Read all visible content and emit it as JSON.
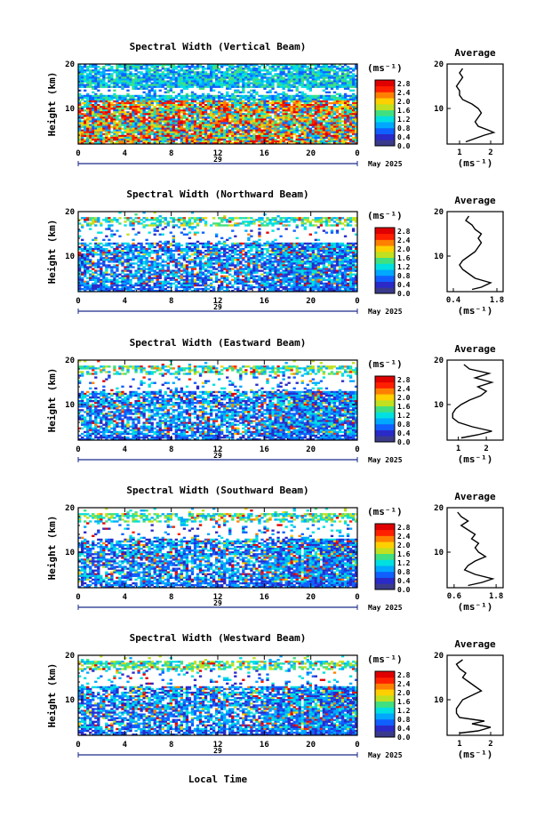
{
  "figure": {
    "date_label": "May 2025",
    "day_label": "29",
    "xlabel": "Local Time",
    "unit_label": "(ms⁻¹)",
    "avg_title": "Average",
    "avg_unit": "(ms⁻¹)"
  },
  "colorbar": {
    "ticks": [
      "2.8",
      "2.4",
      "2.0",
      "1.6",
      "1.2",
      "0.8",
      "0.4",
      "0.0"
    ],
    "colors": [
      "#3a3a8a",
      "#2a2ac8",
      "#1060ff",
      "#00a8ff",
      "#00e0e0",
      "#40e080",
      "#c0e020",
      "#ffd000",
      "#ff8000",
      "#ff2000",
      "#e00000"
    ]
  },
  "chart_data": [
    {
      "type": "heatmap",
      "title": "Spectral Width (Vertical Beam)",
      "ylabel": "Height (km)",
      "xlim": [
        0,
        24
      ],
      "ylim": [
        2,
        20
      ],
      "xticks": [
        "0",
        "4",
        "8",
        "12",
        "16",
        "20",
        "0"
      ],
      "yticks": [
        "20",
        "10"
      ],
      "average": {
        "xticks": [
          "1",
          "2"
        ],
        "xlim": [
          0.6,
          2.4
        ],
        "profile": [
          [
            1.2,
            2.5
          ],
          [
            1.4,
            3
          ],
          [
            1.8,
            4
          ],
          [
            2.1,
            4.6
          ],
          [
            1.9,
            5.2
          ],
          [
            1.6,
            6
          ],
          [
            1.5,
            7
          ],
          [
            1.6,
            8
          ],
          [
            1.7,
            9
          ],
          [
            1.6,
            10
          ],
          [
            1.4,
            11
          ],
          [
            1.1,
            12
          ],
          [
            1.0,
            13
          ],
          [
            1.0,
            14
          ],
          [
            0.9,
            15
          ],
          [
            1.0,
            16
          ],
          [
            1.1,
            17
          ],
          [
            1.0,
            18
          ],
          [
            1.1,
            19
          ]
        ]
      }
    },
    {
      "type": "heatmap",
      "title": "Spectral Width (Northward Beam)",
      "ylabel": "Height (km)",
      "xlim": [
        0,
        24
      ],
      "ylim": [
        2,
        20
      ],
      "xticks": [
        "0",
        "4",
        "8",
        "12",
        "16",
        "20",
        "0"
      ],
      "yticks": [
        "20",
        "10"
      ],
      "average": {
        "xticks": [
          "0.4",
          "1.8"
        ],
        "xlim": [
          0.2,
          2.0
        ],
        "profile": [
          [
            1.0,
            2.5
          ],
          [
            1.3,
            3
          ],
          [
            1.6,
            4
          ],
          [
            1.1,
            5
          ],
          [
            0.9,
            6
          ],
          [
            0.7,
            7
          ],
          [
            0.6,
            8
          ],
          [
            0.7,
            9
          ],
          [
            0.9,
            10
          ],
          [
            1.1,
            11
          ],
          [
            1.2,
            12
          ],
          [
            1.3,
            13
          ],
          [
            1.2,
            14
          ],
          [
            1.3,
            15
          ],
          [
            1.1,
            16
          ],
          [
            1.0,
            17
          ],
          [
            0.8,
            18
          ],
          [
            0.9,
            19
          ]
        ]
      }
    },
    {
      "type": "heatmap",
      "title": "Spectral Width (Eastward Beam)",
      "ylabel": "Height (km)",
      "xlim": [
        0,
        24
      ],
      "ylim": [
        2,
        20
      ],
      "xticks": [
        "0",
        "4",
        "8",
        "12",
        "16",
        "20",
        "0"
      ],
      "yticks": [
        "20",
        "10"
      ],
      "average": {
        "xticks": [
          "1",
          "2"
        ],
        "xlim": [
          0.6,
          2.6
        ],
        "profile": [
          [
            1.1,
            2.5
          ],
          [
            1.7,
            3.2
          ],
          [
            2.2,
            4
          ],
          [
            1.5,
            5
          ],
          [
            1.0,
            6
          ],
          [
            0.8,
            7
          ],
          [
            0.8,
            8
          ],
          [
            0.9,
            9
          ],
          [
            1.1,
            10
          ],
          [
            1.4,
            11
          ],
          [
            1.8,
            12
          ],
          [
            2.0,
            13
          ],
          [
            1.7,
            14
          ],
          [
            2.2,
            15
          ],
          [
            1.6,
            16
          ],
          [
            2.1,
            17
          ],
          [
            1.4,
            18
          ],
          [
            1.2,
            19
          ]
        ]
      }
    },
    {
      "type": "heatmap",
      "title": "Spectral Width (Southward Beam)",
      "ylabel": "Height (km)",
      "xlim": [
        0,
        24
      ],
      "ylim": [
        2,
        20
      ],
      "xticks": [
        "0",
        "4",
        "8",
        "12",
        "16",
        "20",
        "0"
      ],
      "yticks": [
        "20",
        "10"
      ],
      "average": {
        "xticks": [
          "0.6",
          "1.8"
        ],
        "xlim": [
          0.4,
          2.0
        ],
        "profile": [
          [
            1.0,
            2.5
          ],
          [
            1.4,
            3.2
          ],
          [
            1.7,
            4
          ],
          [
            1.2,
            5
          ],
          [
            0.9,
            6
          ],
          [
            1.0,
            7
          ],
          [
            1.2,
            8
          ],
          [
            1.5,
            9
          ],
          [
            1.3,
            10
          ],
          [
            1.2,
            11
          ],
          [
            1.3,
            12
          ],
          [
            1.1,
            13
          ],
          [
            1.2,
            14
          ],
          [
            1.0,
            15
          ],
          [
            0.8,
            16
          ],
          [
            1.0,
            17
          ],
          [
            0.8,
            18
          ],
          [
            0.7,
            19
          ]
        ]
      }
    },
    {
      "type": "heatmap",
      "title": "Spectral Width (Westward Beam)",
      "ylabel": "Height (km)",
      "xlim": [
        0,
        24
      ],
      "ylim": [
        2,
        20
      ],
      "xticks": [
        "0",
        "4",
        "8",
        "12",
        "16",
        "20",
        "0"
      ],
      "yticks": [
        "20",
        "10"
      ],
      "average": {
        "xticks": [
          "1",
          "2"
        ],
        "xlim": [
          0.6,
          2.4
        ],
        "profile": [
          [
            1.0,
            2.5
          ],
          [
            1.6,
            3
          ],
          [
            2.0,
            3.8
          ],
          [
            1.4,
            4.6
          ],
          [
            1.8,
            5.2
          ],
          [
            1.0,
            6
          ],
          [
            0.9,
            7
          ],
          [
            0.9,
            8
          ],
          [
            1.0,
            9
          ],
          [
            1.1,
            10
          ],
          [
            1.4,
            11
          ],
          [
            1.7,
            12
          ],
          [
            1.5,
            13
          ],
          [
            1.3,
            14
          ],
          [
            1.1,
            15
          ],
          [
            1.2,
            16
          ],
          [
            1.0,
            17
          ],
          [
            0.9,
            18
          ],
          [
            1.1,
            19
          ]
        ]
      }
    }
  ]
}
